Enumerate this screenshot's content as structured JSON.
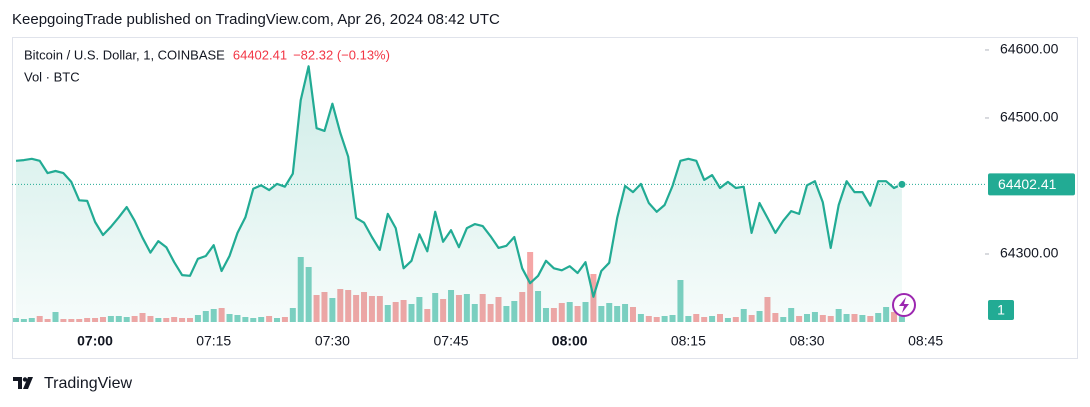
{
  "chart_data": {
    "type": "line",
    "header": "KeepgoingTrade published on TradingView.com, Apr 26, 2024 08:42 UTC",
    "change_label": "−82.32 (−0.13%)",
    "brand": "TradingView",
    "x": [
      "06:50",
      "06:51",
      "06:52",
      "06:53",
      "06:54",
      "06:55",
      "06:56",
      "06:57",
      "06:58",
      "06:59",
      "07:00",
      "07:01",
      "07:02",
      "07:03",
      "07:04",
      "07:05",
      "07:06",
      "07:07",
      "07:08",
      "07:09",
      "07:10",
      "07:11",
      "07:12",
      "07:13",
      "07:14",
      "07:15",
      "07:16",
      "07:17",
      "07:18",
      "07:19",
      "07:20",
      "07:21",
      "07:22",
      "07:23",
      "07:24",
      "07:25",
      "07:26",
      "07:27",
      "07:28",
      "07:29",
      "07:30",
      "07:31",
      "07:32",
      "07:33",
      "07:34",
      "07:35",
      "07:36",
      "07:37",
      "07:38",
      "07:39",
      "07:40",
      "07:41",
      "07:42",
      "07:43",
      "07:44",
      "07:45",
      "07:46",
      "07:47",
      "07:48",
      "07:49",
      "07:50",
      "07:51",
      "07:52",
      "07:53",
      "07:54",
      "07:55",
      "07:56",
      "07:57",
      "07:58",
      "07:59",
      "08:00",
      "08:01",
      "08:02",
      "08:03",
      "08:04",
      "08:05",
      "08:06",
      "08:07",
      "08:08",
      "08:09",
      "08:10",
      "08:11",
      "08:12",
      "08:13",
      "08:14",
      "08:15",
      "08:16",
      "08:17",
      "08:18",
      "08:19",
      "08:20",
      "08:21",
      "08:22",
      "08:23",
      "08:24",
      "08:25",
      "08:26",
      "08:27",
      "08:28",
      "08:29",
      "08:30",
      "08:31",
      "08:32",
      "08:33",
      "08:34",
      "08:35",
      "08:36",
      "08:37",
      "08:38",
      "08:39",
      "08:40",
      "08:41",
      "08:42"
    ],
    "series": [
      {
        "name": "Bitcoin / U.S. Dollar, 1, COINBASE",
        "color": "#22ab94",
        "values": [
          64437,
          64438,
          64440,
          64437,
          64419,
          64422,
          64419,
          64406,
          64379,
          64378,
          64347,
          64328,
          64340,
          64354,
          64369,
          64349,
          64324,
          64302,
          64319,
          64310,
          64288,
          64269,
          64268,
          64293,
          64297,
          64313,
          64275,
          64297,
          64331,
          64354,
          64396,
          64401,
          64394,
          64403,
          64399,
          64418,
          64526,
          64576,
          64485,
          64481,
          64521,
          64478,
          64443,
          64353,
          64346,
          64325,
          64306,
          64359,
          64338,
          64279,
          64290,
          64329,
          64304,
          64362,
          64318,
          64335,
          64310,
          64338,
          64344,
          64341,
          64326,
          64309,
          64312,
          64325,
          64279,
          64257,
          64268,
          64290,
          64279,
          64276,
          64282,
          64272,
          64288,
          64237,
          64275,
          64287,
          64353,
          64400,
          64391,
          64403,
          64375,
          64362,
          64372,
          64400,
          64437,
          64440,
          64437,
          64409,
          64416,
          64397,
          64406,
          64397,
          64399,
          64331,
          64375,
          64353,
          64331,
          64349,
          64363,
          64359,
          64401,
          64407,
          64376,
          64309,
          64372,
          64407,
          64391,
          64391,
          64371,
          64407,
          64407,
          64397,
          64402.41
        ]
      },
      {
        "name": "Vol · BTC",
        "axis": "y2",
        "color": "#7fd1c2",
        "down_color": "#f5a6a6",
        "values": [
          0.4,
          0.3,
          0.4,
          0.6,
          0.3,
          1.0,
          0.3,
          0.3,
          0.3,
          0.4,
          0.4,
          0.5,
          0.6,
          0.6,
          0.5,
          0.6,
          0.9,
          0.6,
          0.4,
          0.4,
          0.5,
          0.4,
          0.4,
          0.7,
          1.1,
          1.3,
          1.4,
          0.8,
          0.7,
          0.5,
          0.4,
          0.5,
          0.6,
          0.4,
          0.5,
          1.4,
          6.5,
          5.5,
          2.7,
          3.0,
          2.4,
          3.3,
          3.2,
          2.7,
          3.0,
          2.6,
          2.6,
          1.7,
          2.0,
          2.2,
          1.8,
          2.5,
          1.3,
          2.9,
          2.3,
          3.2,
          2.7,
          2.8,
          1.8,
          2.8,
          1.8,
          2.5,
          1.6,
          2.1,
          3.0,
          7.0,
          3.1,
          1.4,
          1.4,
          1.9,
          2.0,
          1.6,
          2.0,
          4.8,
          1.6,
          1.9,
          1.6,
          1.8,
          1.5,
          0.8,
          0.6,
          0.5,
          0.6,
          0.7,
          4.2,
          0.6,
          0.8,
          0.5,
          0.6,
          0.8,
          0.4,
          0.5,
          1.3,
          0.7,
          1.1,
          2.5,
          0.9,
          0.5,
          1.4,
          0.6,
          0.8,
          1.0,
          0.7,
          0.6,
          1.3,
          0.8,
          0.8,
          0.7,
          0.6,
          0.9,
          1.5,
          1.0,
          1
        ]
      }
    ],
    "xlim": [
      "06:49:30",
      "08:52:30"
    ],
    "xticks": [
      "07:00",
      "07:15",
      "07:30",
      "07:45",
      "08:00",
      "08:15",
      "08:30",
      "08:45"
    ],
    "ylim": [
      64200,
      64617.6
    ],
    "yticks": [
      {
        "value": 64300,
        "label": "64300.00"
      },
      {
        "value": 64500,
        "label": "64500.00"
      },
      {
        "value": 64600,
        "label": "64600.00"
      }
    ],
    "y2lim": [
      0,
      28.4
    ]
  }
}
